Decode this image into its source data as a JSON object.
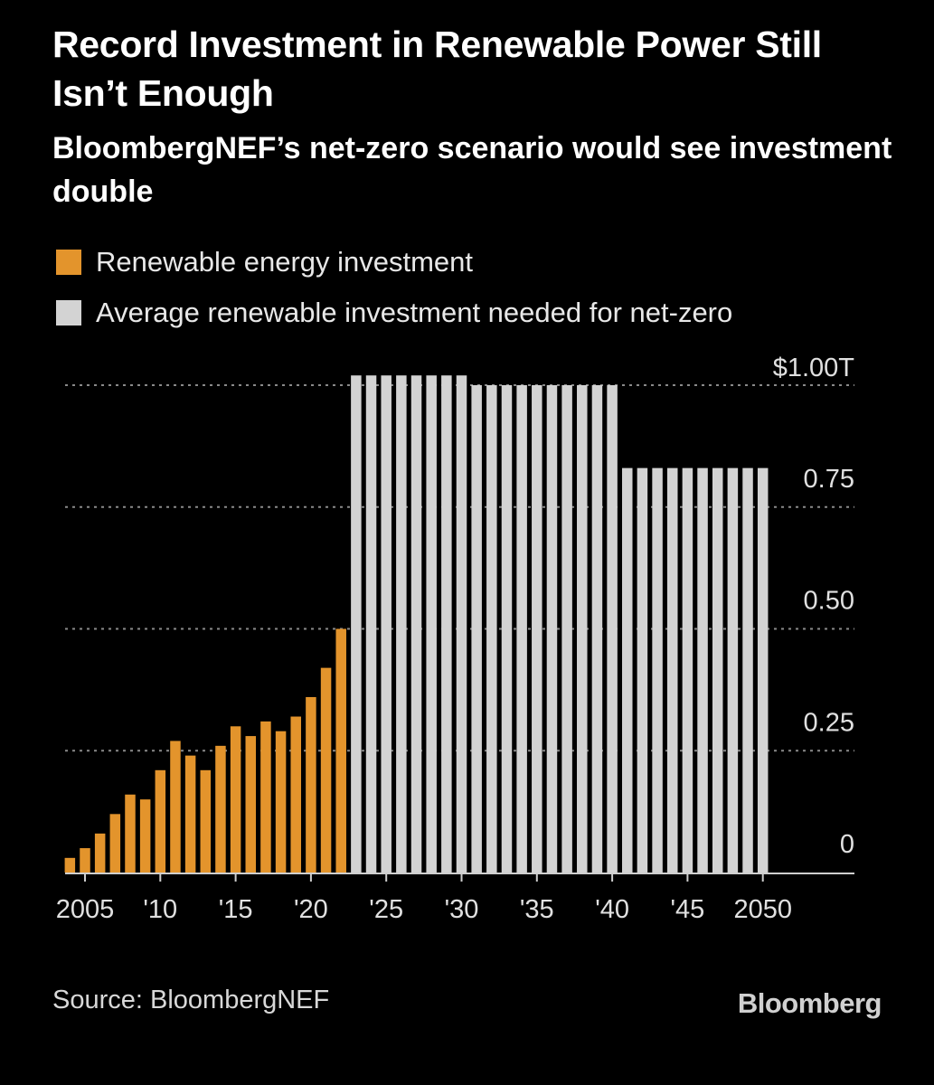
{
  "title": "Record Investment in Renewable Power Still Isn’t Enough",
  "subtitle": "BloombergNEF’s net-zero scenario would see investment double",
  "legend": [
    {
      "label": "Renewable energy investment",
      "color": "#e3942c"
    },
    {
      "label": "Average renewable investment needed for net-zero",
      "color": "#d3d3d3"
    }
  ],
  "source": "Source: BloombergNEF",
  "logo": "Bloomberg",
  "chart_data": {
    "type": "bar",
    "title": "Record Investment in Renewable Power Still Isn’t Enough",
    "subtitle": "BloombergNEF’s net-zero scenario would see investment double",
    "unit": "trillion USD",
    "ylim": [
      0,
      1.0
    ],
    "y_ticks": [
      {
        "value": 1.0,
        "label": "$1.00T"
      },
      {
        "value": 0.75,
        "label": "0.75"
      },
      {
        "value": 0.5,
        "label": "0.50"
      },
      {
        "value": 0.25,
        "label": "0.25"
      },
      {
        "value": 0,
        "label": "0"
      }
    ],
    "x_ticks": [
      {
        "year": 2005,
        "label": "2005"
      },
      {
        "year": 2010,
        "label": "'10"
      },
      {
        "year": 2015,
        "label": "'15"
      },
      {
        "year": 2020,
        "label": "'20"
      },
      {
        "year": 2025,
        "label": "'25"
      },
      {
        "year": 2030,
        "label": "'30"
      },
      {
        "year": 2035,
        "label": "'35"
      },
      {
        "year": 2040,
        "label": "'40"
      },
      {
        "year": 2045,
        "label": "'45"
      },
      {
        "year": 2050,
        "label": "2050"
      }
    ],
    "grid": true,
    "legend_position": "top",
    "series": [
      {
        "name": "Renewable energy investment",
        "color": "#e3942c",
        "x": [
          2004,
          2005,
          2006,
          2007,
          2008,
          2009,
          2010,
          2011,
          2012,
          2013,
          2014,
          2015,
          2016,
          2017,
          2018,
          2019,
          2020,
          2021,
          2022
        ],
        "values": [
          0.03,
          0.05,
          0.08,
          0.12,
          0.16,
          0.15,
          0.21,
          0.27,
          0.24,
          0.21,
          0.26,
          0.3,
          0.28,
          0.31,
          0.29,
          0.32,
          0.36,
          0.42,
          0.5
        ]
      },
      {
        "name": "Average renewable investment needed for net-zero",
        "color": "#d3d3d3",
        "x": [
          2023,
          2024,
          2025,
          2026,
          2027,
          2028,
          2029,
          2030,
          2031,
          2032,
          2033,
          2034,
          2035,
          2036,
          2037,
          2038,
          2039,
          2040,
          2041,
          2042,
          2043,
          2044,
          2045,
          2046,
          2047,
          2048,
          2049,
          2050
        ],
        "values": [
          1.02,
          1.02,
          1.02,
          1.02,
          1.02,
          1.02,
          1.02,
          1.02,
          1.0,
          1.0,
          1.0,
          1.0,
          1.0,
          1.0,
          1.0,
          1.0,
          1.0,
          1.0,
          0.83,
          0.83,
          0.83,
          0.83,
          0.83,
          0.83,
          0.83,
          0.83,
          0.83,
          0.83
        ]
      }
    ]
  }
}
